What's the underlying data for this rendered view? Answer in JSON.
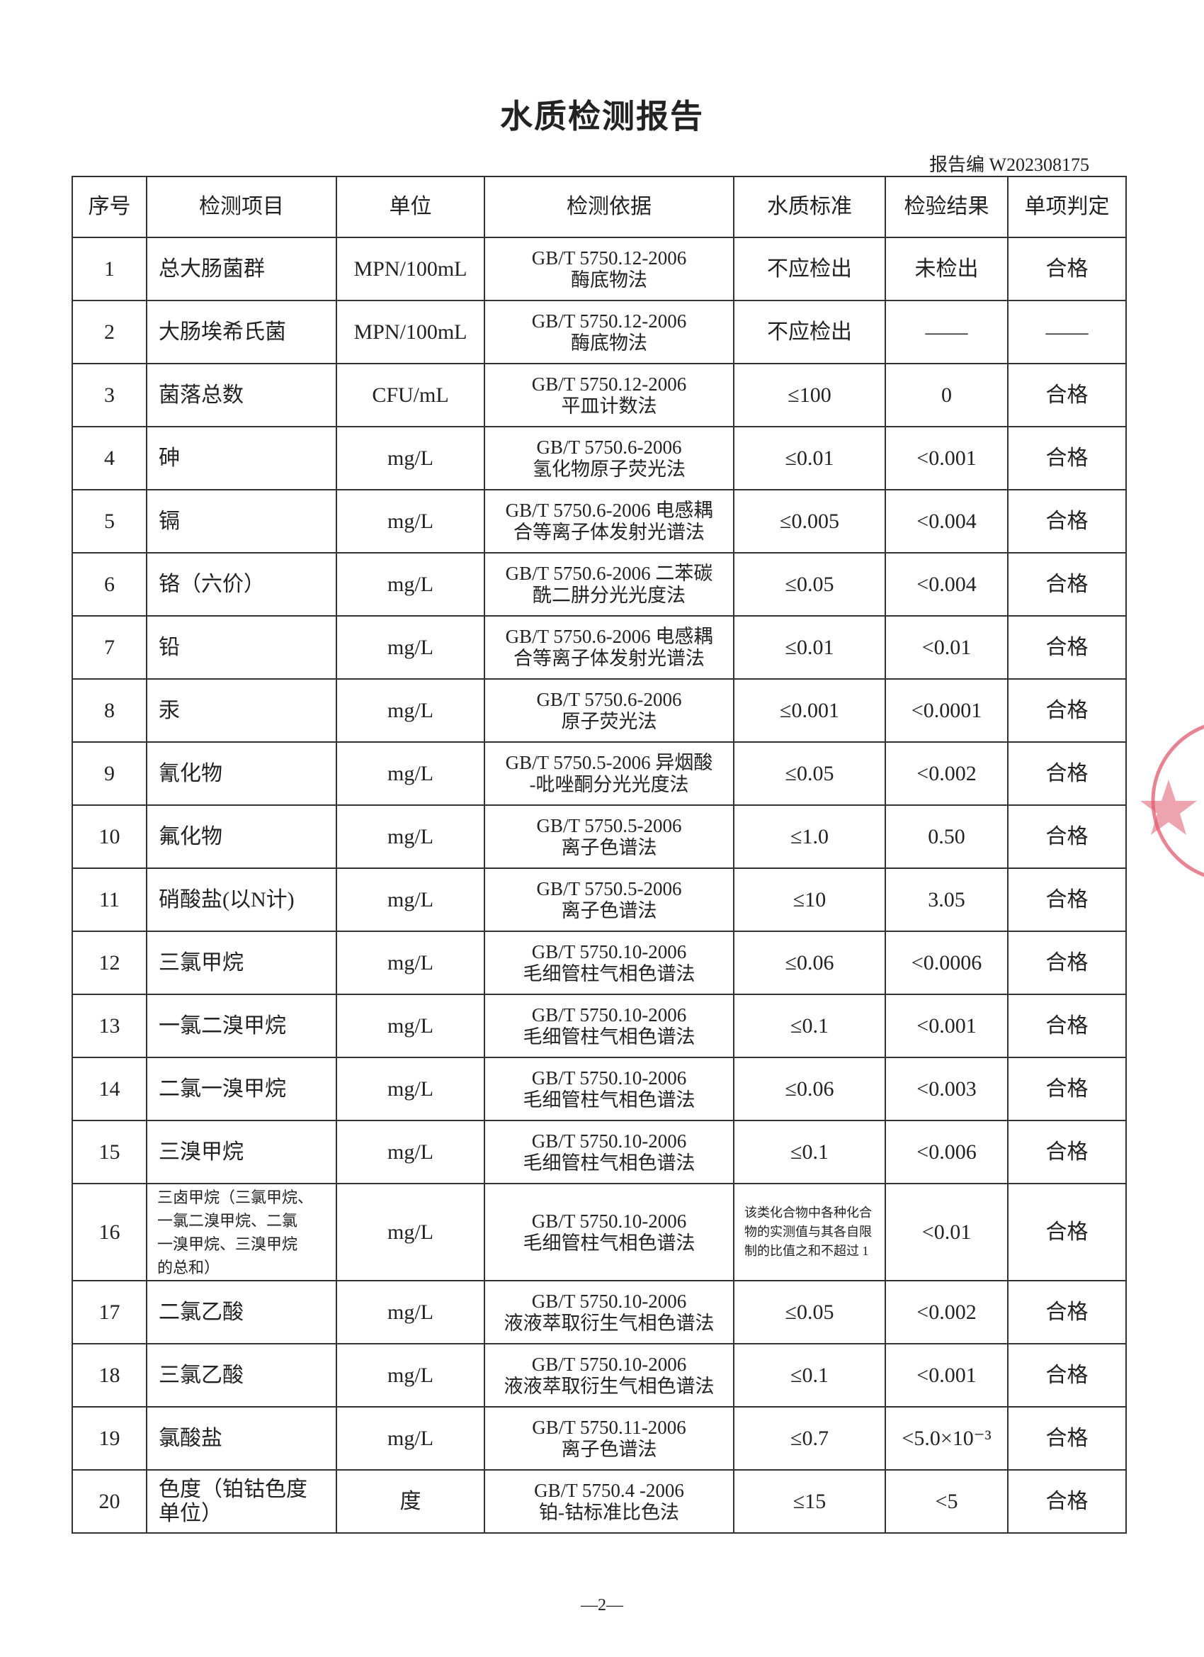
{
  "header": {
    "title": "水质检测报告",
    "report_no": "报告编 W202308175"
  },
  "table": {
    "columns": [
      "序号",
      "检测项目",
      "单位",
      "检测依据",
      "水质标准",
      "检验结果",
      "单项判定"
    ],
    "rows": [
      [
        "1",
        "总大肠菌群",
        "MPN/100mL",
        "GB/T 5750.12-2006\n酶底物法",
        "不应检出",
        "未检出",
        "合格"
      ],
      [
        "2",
        "大肠埃希氏菌",
        "MPN/100mL",
        "GB/T 5750.12-2006\n酶底物法",
        "不应检出",
        "——",
        "——"
      ],
      [
        "3",
        "菌落总数",
        "CFU/mL",
        "GB/T 5750.12-2006\n平皿计数法",
        "≤100",
        "0",
        "合格"
      ],
      [
        "4",
        "砷",
        "mg/L",
        "GB/T 5750.6-2006\n氢化物原子荧光法",
        "≤0.01",
        "<0.001",
        "合格"
      ],
      [
        "5",
        "镉",
        "mg/L",
        "GB/T 5750.6-2006 电感耦\n合等离子体发射光谱法",
        "≤0.005",
        "<0.004",
        "合格"
      ],
      [
        "6",
        "铬（六价）",
        "mg/L",
        "GB/T 5750.6-2006 二苯碳\n酰二肼分光光度法",
        "≤0.05",
        "<0.004",
        "合格"
      ],
      [
        "7",
        "铅",
        "mg/L",
        "GB/T 5750.6-2006 电感耦\n合等离子体发射光谱法",
        "≤0.01",
        "<0.01",
        "合格"
      ],
      [
        "8",
        "汞",
        "mg/L",
        "GB/T 5750.6-2006\n原子荧光法",
        "≤0.001",
        "<0.0001",
        "合格"
      ],
      [
        "9",
        "氰化物",
        "mg/L",
        "GB/T 5750.5-2006 异烟酸\n-吡唑酮分光光度法",
        "≤0.05",
        "<0.002",
        "合格"
      ],
      [
        "10",
        "氟化物",
        "mg/L",
        "GB/T 5750.5-2006\n离子色谱法",
        "≤1.0",
        "0.50",
        "合格"
      ],
      [
        "11",
        "硝酸盐(以N计)",
        "mg/L",
        "GB/T 5750.5-2006\n离子色谱法",
        "≤10",
        "3.05",
        "合格"
      ],
      [
        "12",
        "三氯甲烷",
        "mg/L",
        "GB/T 5750.10-2006\n毛细管柱气相色谱法",
        "≤0.06",
        "<0.0006",
        "合格"
      ],
      [
        "13",
        "一氯二溴甲烷",
        "mg/L",
        "GB/T 5750.10-2006\n毛细管柱气相色谱法",
        "≤0.1",
        "<0.001",
        "合格"
      ],
      [
        "14",
        "二氯一溴甲烷",
        "mg/L",
        "GB/T 5750.10-2006\n毛细管柱气相色谱法",
        "≤0.06",
        "<0.003",
        "合格"
      ],
      [
        "15",
        "三溴甲烷",
        "mg/L",
        "GB/T 5750.10-2006\n毛细管柱气相色谱法",
        "≤0.1",
        "<0.006",
        "合格"
      ],
      [
        "16",
        "三卤甲烷（三氯甲烷、\n一氯二溴甲烷、二氯\n一溴甲烷、三溴甲烷\n的总和）",
        "mg/L",
        "GB/T 5750.10-2006\n毛细管柱气相色谱法",
        "该类化合物中各种化合\n物的实测值与其各自限\n制的比值之和不超过 1",
        "<0.01",
        "合格"
      ],
      [
        "17",
        "二氯乙酸",
        "mg/L",
        "GB/T 5750.10-2006\n液液萃取衍生气相色谱法",
        "≤0.05",
        "<0.002",
        "合格"
      ],
      [
        "18",
        "三氯乙酸",
        "mg/L",
        "GB/T 5750.10-2006\n液液萃取衍生气相色谱法",
        "≤0.1",
        "<0.001",
        "合格"
      ],
      [
        "19",
        "氯酸盐",
        "mg/L",
        "GB/T 5750.11-2006\n离子色谱法",
        "≤0.7",
        "<5.0×10⁻³",
        "合格"
      ],
      [
        "20",
        "色度（铂钴色度\n单位）",
        "度",
        "GB/T 5750.4 -2006\n铂-钴标准比色法",
        "≤15",
        "<5",
        "合格"
      ]
    ]
  },
  "footer": {
    "page": "—2—"
  }
}
